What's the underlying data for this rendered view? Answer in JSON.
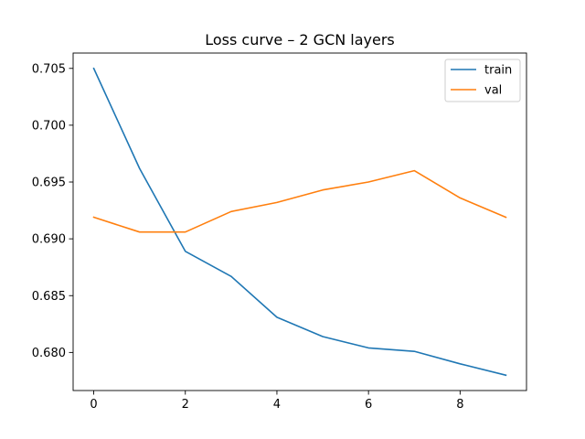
{
  "chart_data": {
    "type": "line",
    "title": "Loss curve – 2 GCN layers",
    "xlabel": "",
    "ylabel": "",
    "x": [
      0,
      1,
      2,
      3,
      4,
      5,
      6,
      7,
      8,
      9
    ],
    "series": [
      {
        "name": "train",
        "color": "#1f77b4",
        "values": [
          0.705,
          0.6962,
          0.6889,
          0.6867,
          0.6831,
          0.6814,
          0.6804,
          0.6801,
          0.679,
          0.678
        ]
      },
      {
        "name": "val",
        "color": "#ff7f0e",
        "values": [
          0.6919,
          0.6906,
          0.6906,
          0.6924,
          0.6932,
          0.6943,
          0.695,
          0.696,
          0.6936,
          0.6919
        ]
      }
    ],
    "xlim": [
      -0.45,
      9.45
    ],
    "ylim": [
      0.67665,
      0.70635
    ],
    "xticks": [
      0,
      2,
      4,
      6,
      8
    ],
    "xtick_labels": [
      "0",
      "2",
      "4",
      "6",
      "8"
    ],
    "yticks": [
      0.68,
      0.685,
      0.69,
      0.695,
      0.7,
      0.705
    ],
    "ytick_labels": [
      "0.680",
      "0.685",
      "0.690",
      "0.695",
      "0.700",
      "0.705"
    ],
    "grid": false,
    "legend_position": "upper right"
  }
}
